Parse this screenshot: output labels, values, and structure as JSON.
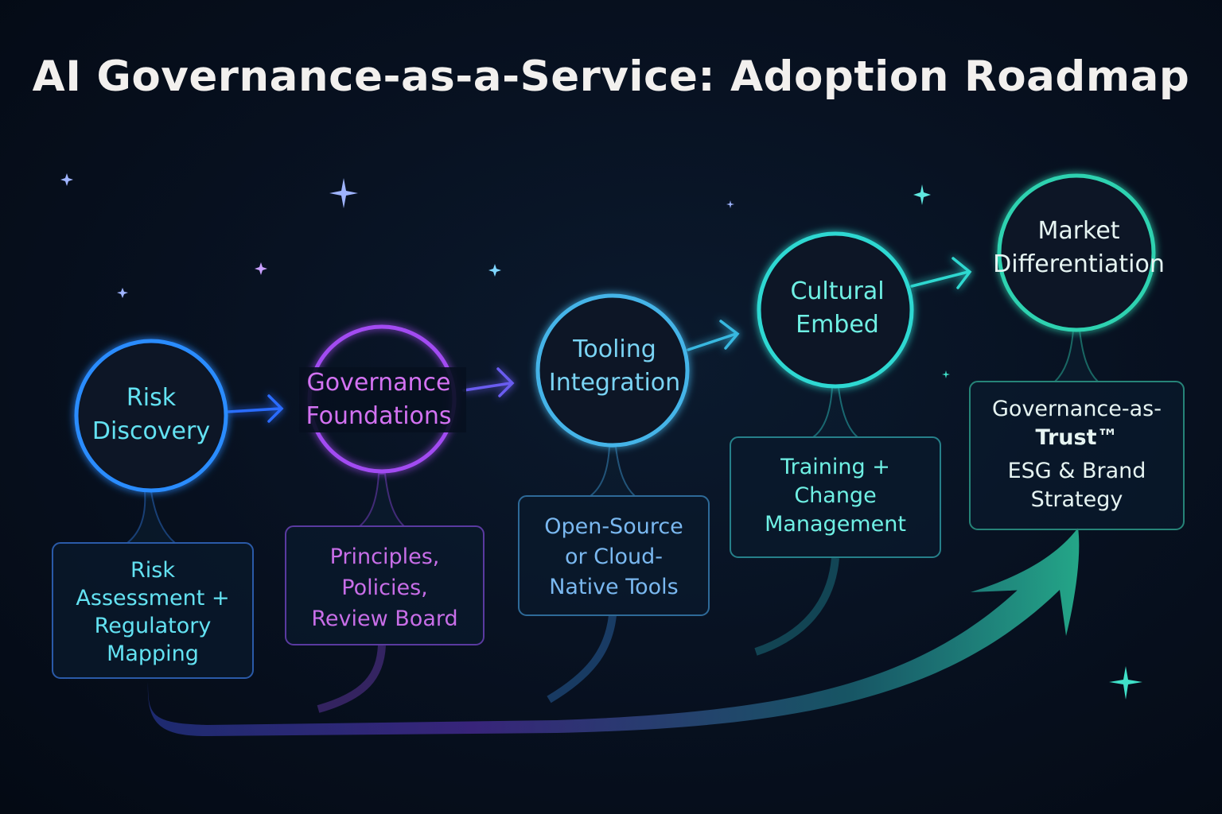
{
  "title": "AI Governance-as-a-Service: Adoption Roadmap",
  "stages": [
    {
      "name_lines": [
        "Risk",
        "Discovery"
      ],
      "detail_lines": [
        "Risk",
        "Assessment +",
        "Regulatory",
        "Mapping"
      ],
      "color": "#2f8cff",
      "text_color": "#63e2f2"
    },
    {
      "name_lines": [
        "Governance",
        "Foundations"
      ],
      "detail_lines": [
        "Principles,",
        "Policies,",
        "Review Board"
      ],
      "color": "#a24cf2",
      "text_color": "#d372f2"
    },
    {
      "name_lines": [
        "Tooling",
        "Integration"
      ],
      "detail_lines": [
        "Open-Source",
        "or Cloud-",
        "Native Tools"
      ],
      "color": "#44b4e8",
      "text_color": "#7ad4f4"
    },
    {
      "name_lines": [
        "Cultural",
        "Embed"
      ],
      "detail_lines": [
        "Training +",
        "Change",
        "Management"
      ],
      "color": "#2fd8d2",
      "text_color": "#6ff0e4"
    },
    {
      "name_lines": [
        "Market",
        "Differentiation"
      ],
      "detail_lines": [
        "Governance-as-",
        "Trust™",
        "ESG & Brand",
        "Strategy"
      ],
      "color": "#2fd2b0",
      "text_color": "#e6f4f2"
    }
  ]
}
